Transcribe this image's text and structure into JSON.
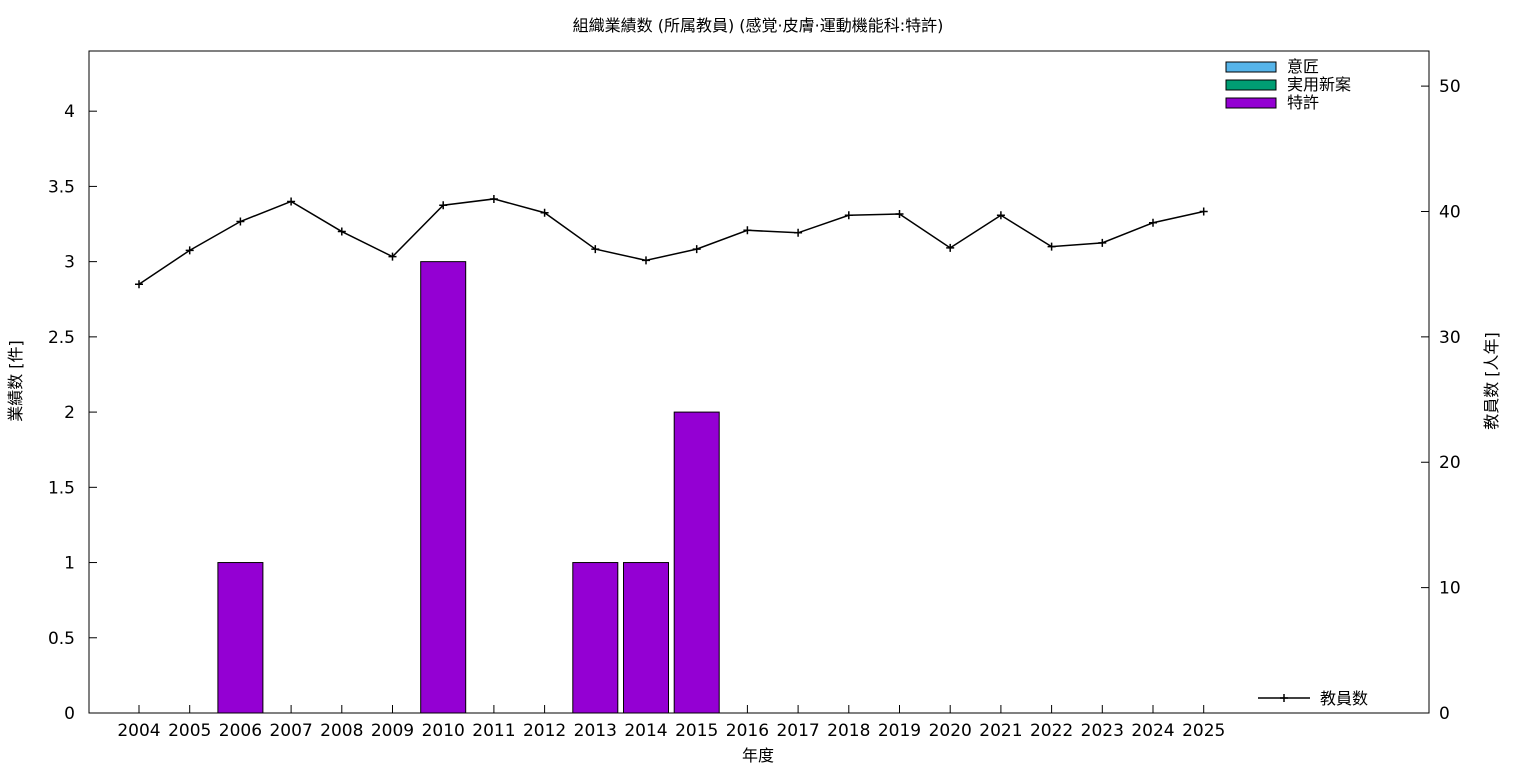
{
  "chart_data": {
    "type": "bar",
    "title": "組織業績数 (所属教員) (感覚·皮膚·運動機能科:特許)",
    "xlabel": "年度",
    "ylabel": "業績数 [件]",
    "y2label": "教員数 [人年]",
    "categories": [
      "2004",
      "2005",
      "2006",
      "2007",
      "2008",
      "2009",
      "2010",
      "2011",
      "2012",
      "2013",
      "2014",
      "2015",
      "2016",
      "2017",
      "2018",
      "2019",
      "2020",
      "2021",
      "2022",
      "2023",
      "2024",
      "2025"
    ],
    "ylim": [
      0,
      4.4
    ],
    "y2lim": [
      0,
      52.8
    ],
    "yticks": [
      "0",
      "0.5",
      "1",
      "1.5",
      "2",
      "2.5",
      "3",
      "3.5",
      "4"
    ],
    "y2ticks": [
      "0",
      "10",
      "20",
      "30",
      "40",
      "50"
    ],
    "series": [
      {
        "name": "意匠",
        "color": "#56b4e9",
        "values": [
          0,
          0,
          0,
          0,
          0,
          0,
          0,
          0,
          0,
          0,
          0,
          0,
          0,
          0,
          0,
          0,
          0,
          0,
          0,
          0,
          0,
          0
        ]
      },
      {
        "name": "実用新案",
        "color": "#009e73",
        "values": [
          0,
          0,
          0,
          0,
          0,
          0,
          0,
          0,
          0,
          0,
          0,
          0,
          0,
          0,
          0,
          0,
          0,
          0,
          0,
          0,
          0,
          0
        ]
      },
      {
        "name": "特許",
        "color": "#9400d3",
        "values": [
          0,
          0,
          1,
          0,
          0,
          0,
          3,
          0,
          0,
          1,
          1,
          2,
          0,
          0,
          0,
          0,
          0,
          0,
          0,
          0,
          0,
          0
        ]
      }
    ],
    "line_series": {
      "name": "教員数",
      "color": "#000000",
      "axis": "right",
      "values": [
        34.2,
        36.9,
        39.2,
        40.8,
        38.4,
        36.4,
        40.5,
        41.0,
        39.9,
        37.0,
        36.1,
        37.0,
        38.5,
        38.3,
        39.7,
        39.8,
        37.1,
        39.7,
        37.2,
        37.5,
        39.1,
        40.0
      ]
    },
    "legend_position": "top-right",
    "line_legend_position": "bottom-right",
    "grid": false
  }
}
